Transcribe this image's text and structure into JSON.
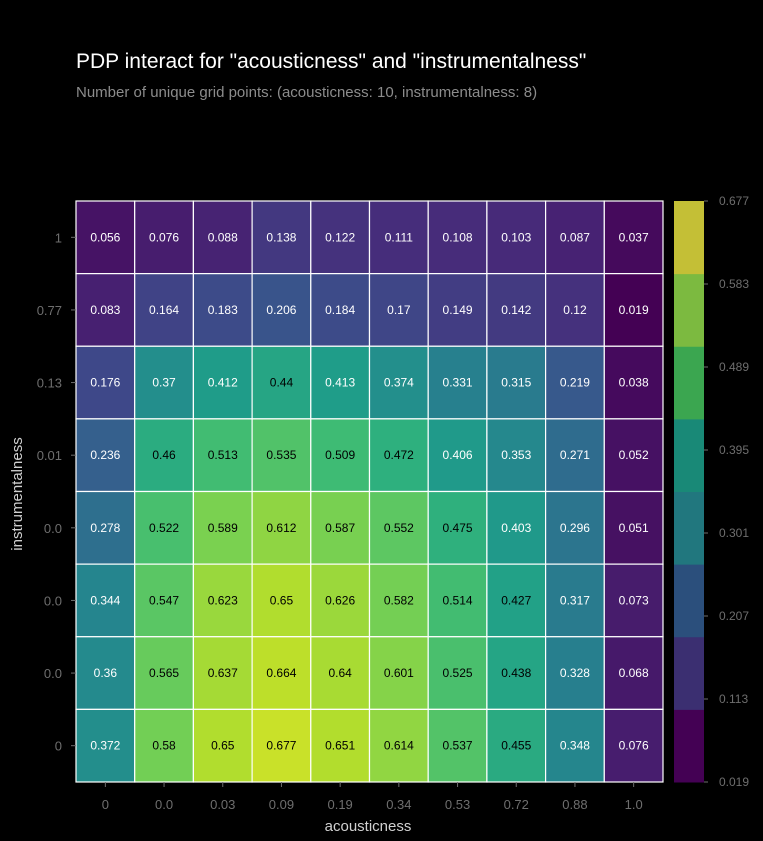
{
  "chart_data": {
    "type": "heatmap",
    "title": "PDP interact for \"acousticness\" and \"instrumentalness\"",
    "subtitle": "Number of unique grid points: (acousticness: 10, instrumentalness: 8)",
    "xlabel": "acousticness",
    "ylabel": "instrumentalness",
    "x_ticks": [
      "0",
      "0.0",
      "0.03",
      "0.09",
      "0.19",
      "0.34",
      "0.53",
      "0.72",
      "0.88",
      "1.0"
    ],
    "y_ticks_top_to_bottom": [
      "1",
      "0.77",
      "0.13",
      "0.01",
      "0.0",
      "0.0",
      "0.0",
      "0"
    ],
    "values_top_to_bottom": [
      [
        0.056,
        0.076,
        0.088,
        0.138,
        0.122,
        0.111,
        0.108,
        0.103,
        0.087,
        0.037
      ],
      [
        0.083,
        0.164,
        0.183,
        0.206,
        0.184,
        0.17,
        0.149,
        0.142,
        0.12,
        0.019
      ],
      [
        0.176,
        0.37,
        0.412,
        0.44,
        0.413,
        0.374,
        0.331,
        0.315,
        0.219,
        0.038
      ],
      [
        0.236,
        0.46,
        0.513,
        0.535,
        0.509,
        0.472,
        0.406,
        0.353,
        0.271,
        0.052
      ],
      [
        0.278,
        0.522,
        0.589,
        0.612,
        0.587,
        0.552,
        0.475,
        0.403,
        0.296,
        0.051
      ],
      [
        0.344,
        0.547,
        0.623,
        0.65,
        0.626,
        0.582,
        0.514,
        0.427,
        0.317,
        0.073
      ],
      [
        0.36,
        0.565,
        0.637,
        0.664,
        0.64,
        0.601,
        0.525,
        0.438,
        0.328,
        0.068
      ],
      [
        0.372,
        0.58,
        0.65,
        0.677,
        0.651,
        0.614,
        0.537,
        0.455,
        0.348,
        0.076
      ]
    ],
    "colorbar_ticks": [
      "0.677",
      "0.583",
      "0.489",
      "0.395",
      "0.301",
      "0.207",
      "0.113",
      "0.019"
    ],
    "colorbar_bands_bottom_to_top": [
      "#440154",
      "#3b2f71",
      "#2b4f7c",
      "#21777e",
      "#198977",
      "#3ba650",
      "#7cba40",
      "#c4bf36"
    ],
    "range": [
      0.019,
      0.677
    ],
    "colormap": "viridis"
  }
}
